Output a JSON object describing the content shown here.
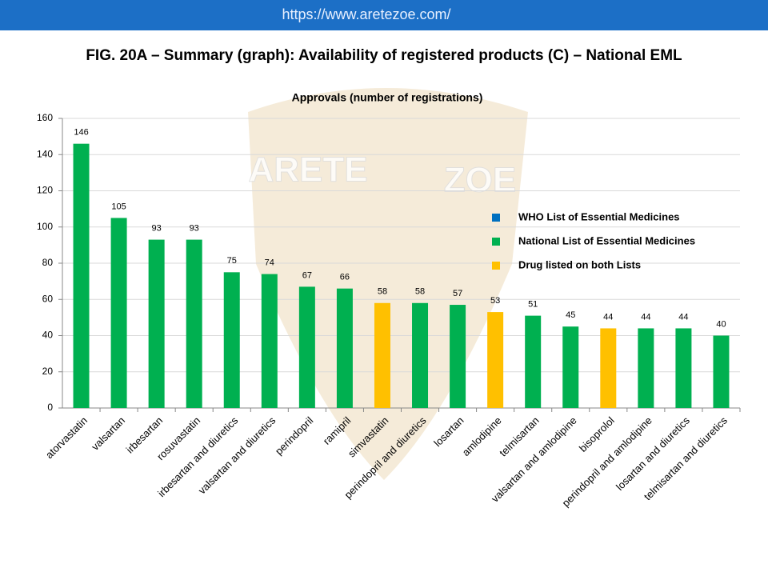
{
  "header": {
    "url": "https://www.aretezoe.com/",
    "title": "FIG. 20A – Summary (graph): Availability of registered products (C) – National EML"
  },
  "watermark": [
    "ARETE",
    "ZOE"
  ],
  "chart_data": {
    "type": "bar",
    "title": "Approvals (number of registrations)",
    "categories": [
      "atorvastatin",
      "valsartan",
      "irbesartan",
      "rosuvastatin",
      "irbesartan and diuretics",
      "valsartan and diuretics",
      "perindopril",
      "ramipril",
      "simvastatin",
      "perindopril and diuretics",
      "losartan",
      "amlodipine",
      "telmisartan",
      "valsartan and amlodipine",
      "bisoprolol",
      "perindopril and amlodipine",
      "losartan and diuretics",
      "telmisartan and diuretics"
    ],
    "values": [
      146,
      105,
      93,
      93,
      75,
      74,
      67,
      66,
      58,
      58,
      57,
      53,
      51,
      45,
      44,
      44,
      44,
      40
    ],
    "colors": [
      "#00b050",
      "#00b050",
      "#00b050",
      "#00b050",
      "#00b050",
      "#00b050",
      "#00b050",
      "#00b050",
      "#ffc000",
      "#00b050",
      "#00b050",
      "#ffc000",
      "#00b050",
      "#00b050",
      "#ffc000",
      "#00b050",
      "#00b050",
      "#00b050"
    ],
    "legend": [
      {
        "name": "WHO List of Essential Medicines",
        "color": "#0070c0"
      },
      {
        "name": "National List of Essential Medicines",
        "color": "#00b050"
      },
      {
        "name": "Drug listed on both Lists",
        "color": "#ffc000"
      }
    ],
    "ylim": [
      0,
      160
    ],
    "yticks": [
      0,
      20,
      40,
      60,
      80,
      100,
      120,
      140,
      160
    ],
    "grid": true
  }
}
